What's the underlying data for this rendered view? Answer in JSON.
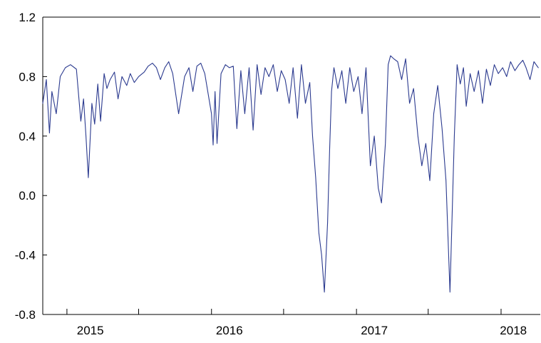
{
  "chart_data": {
    "type": "line",
    "title": "",
    "xlabel": "",
    "ylabel": "",
    "ylim": [
      -0.8,
      1.2
    ],
    "xlim": [
      "2014-11-01",
      "2018-04-10"
    ],
    "grid": false,
    "legend": "none",
    "color": "#2b3a8f",
    "y_ticks": [
      "1.2",
      "0.8",
      "0.4",
      "0.0",
      "-0.4",
      "-0.8"
    ],
    "y_tick_values": [
      1.2,
      0.8,
      0.4,
      0.0,
      -0.4,
      -0.8
    ],
    "x_year_labels": [
      {
        "label": "2015",
        "date": "2015-03-01"
      },
      {
        "label": "2016",
        "date": "2016-02-15"
      },
      {
        "label": "2017",
        "date": "2017-02-15"
      },
      {
        "label": "2018",
        "date": "2018-02-01"
      }
    ],
    "x_minor_ticks": [
      "2015-01-01",
      "2015-07-01",
      "2016-01-01",
      "2016-07-01",
      "2017-01-01",
      "2017-07-01",
      "2018-01-01"
    ],
    "series": [
      {
        "x": [
          "2014-11-01",
          "2014-11-10",
          "2014-11-18",
          "2014-11-24",
          "2014-12-05",
          "2014-12-15",
          "2014-12-28",
          "2015-01-10",
          "2015-01-25",
          "2015-02-05",
          "2015-02-12",
          "2015-02-18",
          "2015-02-24",
          "2015-03-05",
          "2015-03-12",
          "2015-03-20",
          "2015-03-27",
          "2015-04-05",
          "2015-04-12",
          "2015-04-20",
          "2015-05-01",
          "2015-05-10",
          "2015-05-20",
          "2015-06-01",
          "2015-06-10",
          "2015-06-20",
          "2015-07-01",
          "2015-07-15",
          "2015-07-25",
          "2015-08-05",
          "2015-08-15",
          "2015-08-25",
          "2015-09-05",
          "2015-09-15",
          "2015-09-25",
          "2015-10-10",
          "2015-10-25",
          "2015-11-05",
          "2015-11-15",
          "2015-11-25",
          "2015-12-05",
          "2015-12-15",
          "2016-01-01",
          "2016-01-05",
          "2016-01-10",
          "2016-01-15",
          "2016-01-25",
          "2016-02-05",
          "2016-02-15",
          "2016-02-25",
          "2016-03-05",
          "2016-03-15",
          "2016-03-25",
          "2016-04-05",
          "2016-04-15",
          "2016-04-25",
          "2016-05-05",
          "2016-05-15",
          "2016-05-25",
          "2016-06-05",
          "2016-06-15",
          "2016-06-25",
          "2016-07-05",
          "2016-07-15",
          "2016-07-25",
          "2016-08-05",
          "2016-08-15",
          "2016-08-25",
          "2016-09-05",
          "2016-09-12",
          "2016-09-20",
          "2016-09-28",
          "2016-10-05",
          "2016-10-12",
          "2016-10-20",
          "2016-10-25",
          "2016-10-30",
          "2016-11-05",
          "2016-11-15",
          "2016-11-25",
          "2016-12-05",
          "2016-12-15",
          "2016-12-25",
          "2017-01-05",
          "2017-01-15",
          "2017-01-25",
          "2017-02-05",
          "2017-02-15",
          "2017-02-25",
          "2017-03-05",
          "2017-03-15",
          "2017-03-22",
          "2017-03-28",
          "2017-04-05",
          "2017-04-15",
          "2017-04-25",
          "2017-05-05",
          "2017-05-15",
          "2017-05-25",
          "2017-06-05",
          "2017-06-15",
          "2017-06-25",
          "2017-07-05",
          "2017-07-15",
          "2017-07-25",
          "2017-08-05",
          "2017-08-15",
          "2017-08-25",
          "2017-09-05",
          "2017-09-12",
          "2017-09-20",
          "2017-09-28",
          "2017-10-05",
          "2017-10-15",
          "2017-10-25",
          "2017-11-05",
          "2017-11-15",
          "2017-11-25",
          "2017-12-05",
          "2017-12-15",
          "2017-12-25",
          "2018-01-05",
          "2018-01-15",
          "2018-01-25",
          "2018-02-05",
          "2018-02-15",
          "2018-02-25",
          "2018-03-05",
          "2018-03-15",
          "2018-03-25",
          "2018-04-05"
        ],
        "values": [
          0.62,
          0.78,
          0.42,
          0.7,
          0.55,
          0.8,
          0.86,
          0.88,
          0.85,
          0.5,
          0.65,
          0.4,
          0.12,
          0.62,
          0.48,
          0.75,
          0.5,
          0.82,
          0.72,
          0.78,
          0.83,
          0.65,
          0.8,
          0.74,
          0.82,
          0.76,
          0.8,
          0.83,
          0.87,
          0.89,
          0.86,
          0.78,
          0.86,
          0.9,
          0.82,
          0.55,
          0.8,
          0.86,
          0.7,
          0.87,
          0.89,
          0.82,
          0.55,
          0.34,
          0.7,
          0.35,
          0.82,
          0.88,
          0.86,
          0.87,
          0.45,
          0.84,
          0.55,
          0.86,
          0.44,
          0.88,
          0.68,
          0.86,
          0.8,
          0.88,
          0.7,
          0.84,
          0.78,
          0.62,
          0.86,
          0.52,
          0.88,
          0.62,
          0.76,
          0.4,
          0.12,
          -0.25,
          -0.4,
          -0.65,
          -0.18,
          0.3,
          0.7,
          0.86,
          0.72,
          0.84,
          0.62,
          0.86,
          0.7,
          0.8,
          0.55,
          0.86,
          0.2,
          0.4,
          0.05,
          -0.05,
          0.35,
          0.88,
          0.94,
          0.92,
          0.9,
          0.78,
          0.92,
          0.62,
          0.72,
          0.4,
          0.2,
          0.35,
          0.1,
          0.55,
          0.74,
          0.45,
          0.1,
          -0.65,
          0.4,
          0.88,
          0.75,
          0.86,
          0.6,
          0.82,
          0.7,
          0.84,
          0.62,
          0.85,
          0.74,
          0.88,
          0.82,
          0.86,
          0.8,
          0.9,
          0.84,
          0.88,
          0.91,
          0.86,
          0.78,
          0.9,
          0.86
        ]
      }
    ]
  }
}
